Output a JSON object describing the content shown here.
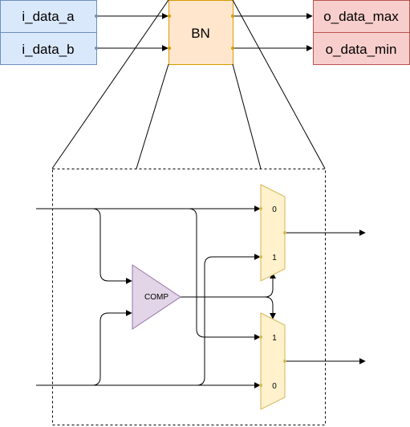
{
  "inputs": {
    "a": "i_data_a",
    "b": "i_data_b"
  },
  "block": {
    "name": "BN"
  },
  "outputs": {
    "max": "o_data_max",
    "min": "o_data_min"
  },
  "detail": {
    "comparator": "COMP",
    "mux_top": {
      "in0": "0",
      "in1": "1"
    },
    "mux_bottom": {
      "in0": "0",
      "in1": "1"
    }
  },
  "colors": {
    "input_fill": "#dae8fc",
    "input_stroke": "#6c8ebf",
    "block_fill": "#ffe6cc",
    "block_stroke": "#d79b00",
    "output_fill": "#f8cecc",
    "output_stroke": "#b85450",
    "mux_fill": "#fff2cc",
    "mux_stroke": "#d6b656",
    "comp_fill": "#e1d5e7",
    "comp_stroke": "#9673a6"
  }
}
